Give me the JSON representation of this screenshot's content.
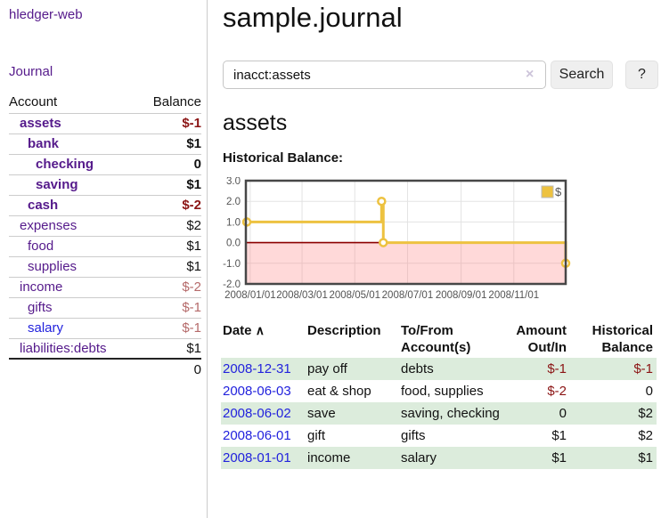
{
  "colors": {
    "accent_purple": "#551a8b",
    "link_blue": "#2222dd",
    "negative_strong": "#8b1414",
    "negative_soft": "#b56a6a",
    "row_stripe_green": "#dcecdc",
    "chart_line": "#edc240",
    "negative_zone_fill": "#ffdbdb",
    "zero_line": "#8b0000"
  },
  "sidebar": {
    "app_title": "hledger-web",
    "journal_link": "Journal",
    "accounts": {
      "account_header": "Account",
      "balance_header": "Balance",
      "rows": [
        {
          "account": "assets",
          "balance": "$-1",
          "indent": 1,
          "bold": true,
          "neg": "strong"
        },
        {
          "account": "bank",
          "balance": "$1",
          "indent": 2,
          "bold": true
        },
        {
          "account": "checking",
          "balance": "0",
          "indent": 3,
          "bold": true
        },
        {
          "account": "saving",
          "balance": "$1",
          "indent": 3,
          "bold": true
        },
        {
          "account": "cash",
          "balance": "$-2",
          "indent": 2,
          "bold": true,
          "neg": "strong"
        },
        {
          "account": "expenses",
          "balance": "$2",
          "indent": 1
        },
        {
          "account": "food",
          "balance": "$1",
          "indent": 2
        },
        {
          "account": "supplies",
          "balance": "$1",
          "indent": 2
        },
        {
          "account": "income",
          "balance": "$-2",
          "indent": 1,
          "neg": "soft"
        },
        {
          "account": "gifts",
          "balance": "$-1",
          "indent": 2,
          "neg": "soft"
        },
        {
          "account": "salary",
          "balance": "$-1",
          "indent": 2,
          "neg": "soft",
          "unvisited": true
        },
        {
          "account": "liabilities:debts",
          "balance": "$1",
          "indent": 1
        }
      ],
      "total": "0"
    }
  },
  "main": {
    "title": "sample.journal",
    "search": {
      "value": "inacct:assets",
      "clear_icon": "×",
      "search_button": "Search",
      "help_button": "?"
    },
    "account_heading": "assets",
    "chart_heading": "Historical Balance:"
  },
  "chart_data": {
    "type": "line",
    "step": true,
    "title": "Historical Balance:",
    "series": [
      {
        "name": "$",
        "color": "#edc240",
        "points": [
          [
            "2008-01-01",
            1
          ],
          [
            "2008-06-01",
            2
          ],
          [
            "2008-06-03",
            0
          ],
          [
            "2008-12-31",
            -1
          ]
        ]
      }
    ],
    "x_ticks": [
      "2008/01/01",
      "2008/03/01",
      "2008/05/01",
      "2008/07/01",
      "2008/09/01",
      "2008/11/01"
    ],
    "y_ticks": [
      "3.0",
      "2.0",
      "1.0",
      "0.0",
      "-1.0",
      "-2.0"
    ],
    "ylim": [
      -2,
      3
    ],
    "x_range": [
      "2007-12-27",
      "2008-12-31"
    ],
    "grid": true,
    "legend_position": "top-right",
    "legend_label": "$",
    "negative_zone": true
  },
  "register": {
    "headers": {
      "date": "Date",
      "sort_icon": "∧",
      "description": "Description",
      "accounts_line1": "To/From",
      "accounts_line2": "Account(s)",
      "amount_line1": "Amount",
      "amount_line2": "Out/In",
      "balance_line1": "Historical",
      "balance_line2": "Balance"
    },
    "rows": [
      {
        "date": "2008-12-31",
        "description": "pay off",
        "accounts": "debts",
        "amount": "$-1",
        "amount_neg": true,
        "balance": "$-1",
        "balance_neg": true
      },
      {
        "date": "2008-06-03",
        "description": "eat & shop",
        "accounts": "food, supplies",
        "amount": "$-2",
        "amount_neg": true,
        "balance": "0",
        "balance_neg": false
      },
      {
        "date": "2008-06-02",
        "description": "save",
        "accounts": "saving, checking",
        "amount": "0",
        "amount_neg": false,
        "balance": "$2",
        "balance_neg": false
      },
      {
        "date": "2008-06-01",
        "description": "gift",
        "accounts": "gifts",
        "amount": "$1",
        "amount_neg": false,
        "balance": "$2",
        "balance_neg": false
      },
      {
        "date": "2008-01-01",
        "description": "income",
        "accounts": "salary",
        "amount": "$1",
        "amount_neg": false,
        "balance": "$1",
        "balance_neg": false
      }
    ]
  }
}
